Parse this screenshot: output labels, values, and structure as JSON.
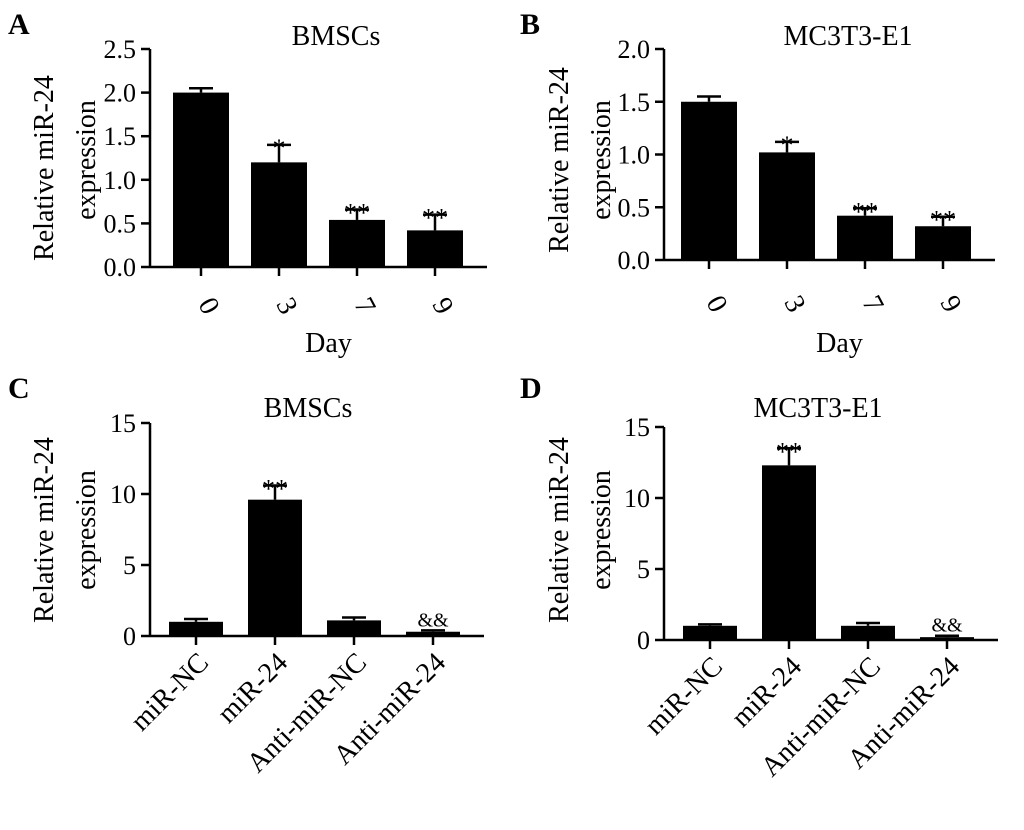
{
  "chart_data": [
    {
      "panel": "A",
      "type": "bar",
      "title": "BMSCs",
      "ylabel": [
        "Relative miR-24",
        "expression"
      ],
      "xlabel": "Day",
      "categories": [
        "0",
        "3",
        "7",
        "9"
      ],
      "values": [
        2.0,
        1.2,
        0.54,
        0.42
      ],
      "errors": [
        0.05,
        0.2,
        0.12,
        0.18
      ],
      "significance": [
        "",
        "*",
        "**",
        "**"
      ],
      "ylim": [
        0,
        2.5
      ],
      "yticks": [
        "0.0",
        "0.5",
        "1.0",
        "1.5",
        "2.0",
        "2.5"
      ]
    },
    {
      "panel": "B",
      "type": "bar",
      "title": "MC3T3-E1",
      "ylabel": [
        "Relative miR-24",
        "expression"
      ],
      "xlabel": "Day",
      "categories": [
        "0",
        "3",
        "7",
        "9"
      ],
      "values": [
        1.5,
        1.02,
        0.42,
        0.32
      ],
      "errors": [
        0.05,
        0.1,
        0.07,
        0.09
      ],
      "significance": [
        "",
        "*",
        "**",
        "**"
      ],
      "ylim": [
        0,
        2.0
      ],
      "yticks": [
        "0.0",
        "0.5",
        "1.0",
        "1.5",
        "2.0"
      ]
    },
    {
      "panel": "C",
      "type": "bar",
      "title": "BMSCs",
      "ylabel": [
        "Relative miR-24",
        "expression"
      ],
      "xlabel": "",
      "categories": [
        "miR-NC",
        "miR-24",
        "Anti-miR-NC",
        "Anti-miR-24"
      ],
      "values": [
        1.0,
        9.6,
        1.1,
        0.3
      ],
      "errors": [
        0.2,
        1.0,
        0.2,
        0.1
      ],
      "significance": [
        "",
        "**",
        "",
        "&&"
      ],
      "ylim": [
        0,
        15
      ],
      "yticks": [
        "0",
        "5",
        "10",
        "15"
      ]
    },
    {
      "panel": "D",
      "type": "bar",
      "title": "MC3T3-E1",
      "ylabel": [
        "Relative miR-24",
        "expression"
      ],
      "xlabel": "",
      "categories": [
        "miR-NC",
        "miR-24",
        "Anti-miR-NC",
        "Anti-miR-24"
      ],
      "values": [
        1.0,
        12.3,
        1.0,
        0.2
      ],
      "errors": [
        0.1,
        1.2,
        0.2,
        0.1
      ],
      "significance": [
        "",
        "**",
        "",
        "&&"
      ],
      "ylim": [
        0,
        15
      ],
      "yticks": [
        "0",
        "5",
        "10",
        "15"
      ]
    }
  ]
}
